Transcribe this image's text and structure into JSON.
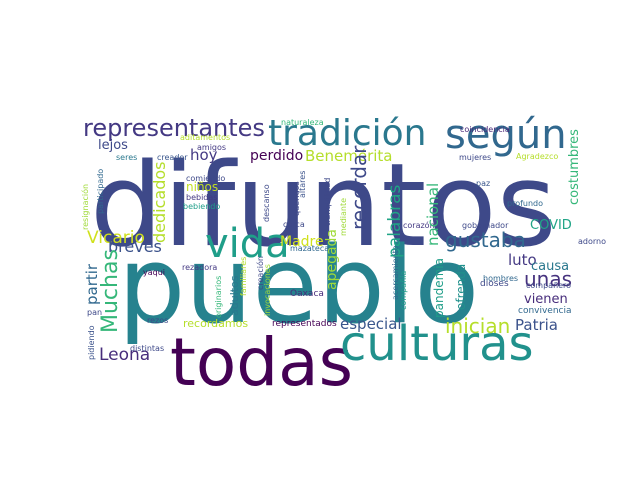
{
  "words": [
    {
      "text": "difuntos",
      "color": "#3e4989"
    },
    {
      "text": "pueblo",
      "color": "#26828e"
    },
    {
      "text": "todas",
      "color": "#440154"
    },
    {
      "text": "culturas",
      "color": "#21918c"
    },
    {
      "text": "tradición",
      "color": "#2a788e"
    },
    {
      "text": "según",
      "color": "#31688e"
    },
    {
      "text": "vida",
      "color": "#1f9e89"
    },
    {
      "text": "representantes",
      "color": "#443983"
    },
    {
      "text": "Muchas",
      "color": "#35b779"
    },
    {
      "text": "Benemérita",
      "color": "#b5de2b"
    },
    {
      "text": "gustaba",
      "color": "#31688e"
    },
    {
      "text": "recordar",
      "color": "#3e4989"
    },
    {
      "text": "palabras",
      "color": "#20a486"
    },
    {
      "text": "apegada",
      "color": "#a0da39"
    },
    {
      "text": "dedicados",
      "color": "#b5de2b"
    },
    {
      "text": "inician",
      "color": "#b5de2b"
    },
    {
      "text": "Vicario",
      "color": "#d0e11c"
    },
    {
      "text": "partir",
      "color": "#31688e"
    },
    {
      "text": "Leona",
      "color": "#472d7b"
    },
    {
      "text": "Patria",
      "color": "#3b528b"
    },
    {
      "text": "especial",
      "color": "#39568c"
    },
    {
      "text": "unas",
      "color": "#46327e"
    },
    {
      "text": "breves",
      "color": "#3b528b"
    },
    {
      "text": "luto",
      "color": "#443983"
    },
    {
      "text": "nacional",
      "color": "#35b779"
    },
    {
      "text": "Madre",
      "color": "#d0e11c"
    },
    {
      "text": "perdido",
      "color": "#440154"
    },
    {
      "text": "hoy",
      "color": "#443983"
    },
    {
      "text": "lejos",
      "color": "#3e4989"
    },
    {
      "text": "costumbres",
      "color": "#35b779"
    },
    {
      "text": "COVID",
      "color": "#20a486"
    },
    {
      "text": "causa",
      "color": "#2a788e"
    },
    {
      "text": "vienen",
      "color": "#472d7b"
    },
    {
      "text": "ofrenda",
      "color": "#21918c"
    },
    {
      "text": "pandemia",
      "color": "#1f9e89"
    },
    {
      "text": "recordamos",
      "color": "#b5de2b"
    },
    {
      "text": "niños",
      "color": "#c2df23"
    },
    {
      "text": "adultos",
      "color": "#2a788e"
    },
    {
      "text": "Oaxaca",
      "color": "#472d7b"
    },
    {
      "text": "dioses",
      "color": "#3e4989"
    },
    {
      "text": "convivencia",
      "color": "#31688e"
    },
    {
      "text": "representados",
      "color": "#440154"
    },
    {
      "text": "gobernador",
      "color": "#3e4989"
    },
    {
      "text": "corazón",
      "color": "#443983"
    },
    {
      "text": "profundo",
      "color": "#31688e"
    },
    {
      "text": "paz",
      "color": "#39568c"
    },
    {
      "text": "Agradezco",
      "color": "#b5de2b"
    },
    {
      "text": "hombres",
      "color": "#31688e"
    },
    {
      "text": "mujeres",
      "color": "#3e4989"
    },
    {
      "text": "compañero",
      "color": "#3e4989"
    },
    {
      "text": "coincidencia",
      "color": "#482677"
    },
    {
      "text": "naturaleza",
      "color": "#35b779"
    },
    {
      "text": "aditamentos",
      "color": "#b5de2b"
    },
    {
      "text": "amigos",
      "color": "#443983"
    },
    {
      "text": "creador",
      "color": "#39568c"
    },
    {
      "text": "seres",
      "color": "#2a788e"
    },
    {
      "text": "comiendo",
      "color": "#3e4989"
    },
    {
      "text": "bebidas",
      "color": "#443983"
    },
    {
      "text": "bebiendo",
      "color": "#1f9e89"
    },
    {
      "text": "rezadora",
      "color": "#443983"
    },
    {
      "text": "yaqui",
      "color": "#440154"
    },
    {
      "text": "pan",
      "color": "#3e4989"
    },
    {
      "text": "rezos",
      "color": "#3e4989"
    },
    {
      "text": "pidiendo",
      "color": "#3b528b"
    },
    {
      "text": "distintas",
      "color": "#3e4989"
    },
    {
      "text": "mazateca",
      "color": "#31688e"
    },
    {
      "text": "cerca",
      "color": "#3e4989"
    },
    {
      "text": "compañía",
      "color": "#1f9e89"
    },
    {
      "text": "acercamiento",
      "color": "#31688e"
    },
    {
      "text": "mediante",
      "color": "#a0da39"
    },
    {
      "text": "tranquilidad",
      "color": "#3e4989"
    },
    {
      "text": "altares",
      "color": "#3b528b"
    },
    {
      "text": "queridos",
      "color": "#3e4989"
    },
    {
      "text": "descanso",
      "color": "#3e4989"
    },
    {
      "text": "creación",
      "color": "#3e4989"
    },
    {
      "text": "invocaciones",
      "color": "#a0da39"
    },
    {
      "text": "familiares",
      "color": "#b5de2b"
    },
    {
      "text": "originarios",
      "color": "#35b779"
    },
    {
      "text": "participado",
      "color": "#31688e"
    },
    {
      "text": "resignación",
      "color": "#a0da39"
    },
    {
      "text": "adorno",
      "color": "#3e4989"
    }
  ]
}
